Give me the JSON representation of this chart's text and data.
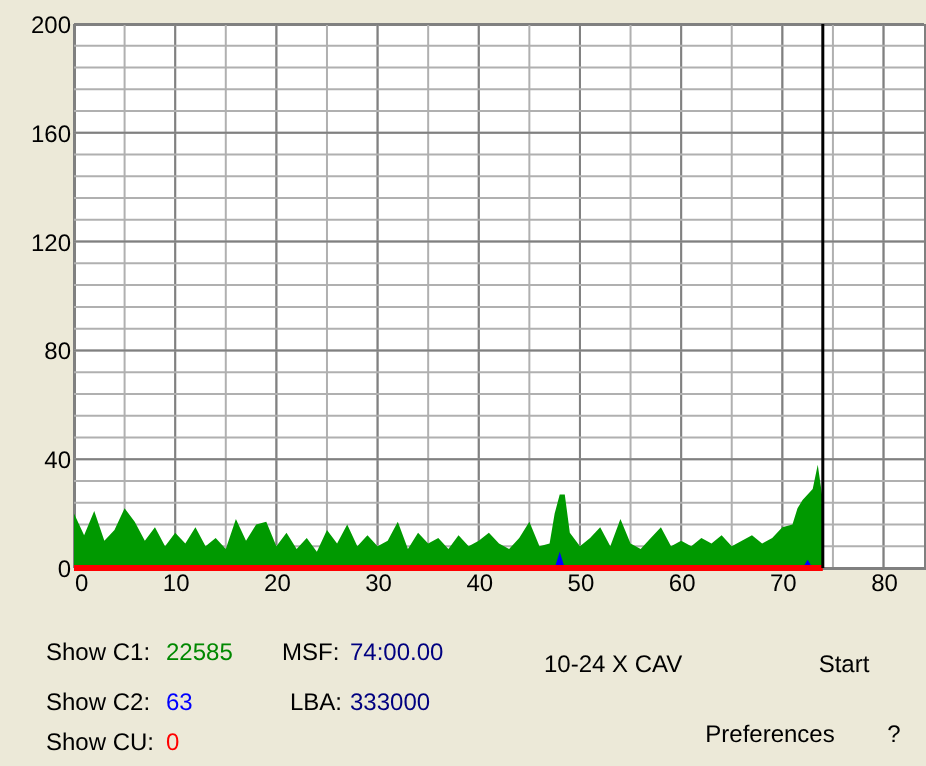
{
  "chart_data": {
    "type": "area",
    "xlim": [
      0,
      84
    ],
    "xticks": [
      0,
      10,
      20,
      30,
      40,
      50,
      60,
      70,
      80
    ],
    "ylim": [
      0,
      200
    ],
    "yticks": [
      0,
      40,
      80,
      120,
      160,
      200
    ],
    "grid": true,
    "series": [
      {
        "color": "#009900",
        "x": [
          0,
          1,
          2,
          3,
          4,
          5,
          6,
          7,
          8,
          9,
          10,
          11,
          12,
          13,
          14,
          15,
          16,
          17,
          18,
          19,
          20,
          21,
          22,
          23,
          24,
          25,
          26,
          27,
          28,
          29,
          30,
          31,
          32,
          33,
          34,
          35,
          36,
          37,
          38,
          39,
          40,
          41,
          42,
          43,
          44,
          45,
          46,
          47,
          47.5,
          48,
          48.5,
          49,
          50,
          51,
          52,
          53,
          54,
          55,
          56,
          57,
          58,
          59,
          60,
          61,
          62,
          63,
          64,
          65,
          66,
          67,
          68,
          69,
          70,
          71,
          71.5,
          72,
          72.5,
          73,
          73.5,
          74
        ],
        "values": [
          20,
          12,
          21,
          10,
          14,
          22,
          17,
          10,
          15,
          8,
          13,
          9,
          15,
          8,
          11,
          7,
          18,
          10,
          16,
          17,
          8,
          13,
          7,
          11,
          6,
          14,
          9,
          16,
          8,
          12,
          8,
          10,
          17,
          7,
          13,
          9,
          11,
          7,
          12,
          8,
          10,
          13,
          9,
          7,
          11,
          17,
          8,
          9,
          20,
          27,
          27,
          13,
          8,
          11,
          15,
          8,
          18,
          9,
          7,
          11,
          15,
          8,
          10,
          8,
          11,
          9,
          12,
          8,
          10,
          12,
          9,
          11,
          15,
          16,
          22,
          25,
          27,
          29,
          38,
          25
        ]
      },
      {
        "color": "#0000ff",
        "x": [
          0,
          47.5,
          48,
          48.5,
          72,
          72.5,
          73,
          74
        ],
        "values": [
          0,
          0,
          6,
          0,
          0,
          3,
          0,
          0
        ]
      },
      {
        "type": "line",
        "color": "#ff0000",
        "x": [
          0,
          74
        ],
        "values": [
          0,
          0
        ]
      }
    ],
    "ref_lines": [
      {
        "axis": "x",
        "value": 74,
        "color": "#000000"
      }
    ],
    "annotations": [
      "Show C1:",
      "22585",
      "MSF:",
      "74:00.00",
      "Show C2:",
      "63",
      "LBA:",
      "333000",
      "Show CU:",
      "0",
      "10-24 X CAV",
      "Start",
      "Preferences",
      "?"
    ]
  }
}
